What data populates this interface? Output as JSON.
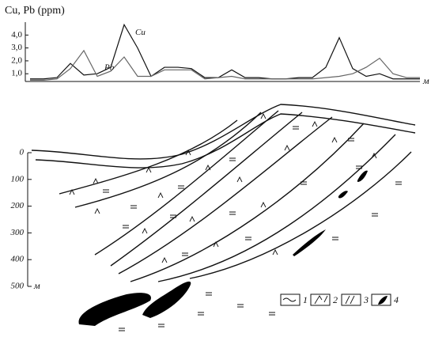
{
  "chart_data": {
    "type": "line",
    "title": "Cu, Pb (ppm)",
    "x_unit": "м",
    "categories": [
      null,
      null,
      null,
      null,
      null,
      null,
      null,
      null,
      null,
      null,
      null,
      null,
      null,
      null,
      null,
      null,
      null,
      null,
      null,
      null,
      null,
      null,
      null,
      null,
      null,
      null,
      null,
      null,
      null,
      null
    ],
    "series": [
      {
        "name": "Cu",
        "color": "#111111",
        "values": [
          0.6,
          0.6,
          0.7,
          1.8,
          0.9,
          1.0,
          1.5,
          4.8,
          3.0,
          0.8,
          1.5,
          1.5,
          1.4,
          0.7,
          0.7,
          1.3,
          0.7,
          0.7,
          0.6,
          0.6,
          0.7,
          0.7,
          1.5,
          3.8,
          1.4,
          0.8,
          1.0,
          0.6,
          0.6,
          0.6
        ]
      },
      {
        "name": "Pb",
        "color": "#666666",
        "values": [
          0.5,
          0.5,
          0.6,
          1.4,
          2.8,
          0.8,
          1.2,
          2.3,
          0.8,
          0.8,
          1.3,
          1.3,
          1.3,
          0.6,
          0.7,
          0.8,
          0.6,
          0.6,
          0.6,
          0.6,
          0.6,
          0.6,
          0.7,
          0.8,
          1.0,
          1.5,
          2.2,
          1.0,
          0.7,
          0.7
        ]
      }
    ],
    "ylim": [
      0.4,
      5.0
    ],
    "yticks": [
      {
        "value": 1.0,
        "label": "1,0"
      },
      {
        "value": 2.0,
        "label": "2,0"
      },
      {
        "value": 3.0,
        "label": "3,0"
      },
      {
        "value": 4.0,
        "label": "4,0"
      }
    ],
    "grid": false
  },
  "section": {
    "depth_labels": [
      "0",
      "100",
      "200",
      "300",
      "400",
      "500"
    ],
    "depth_unit": "м",
    "legend": [
      "1",
      "2",
      "3",
      "4"
    ]
  }
}
